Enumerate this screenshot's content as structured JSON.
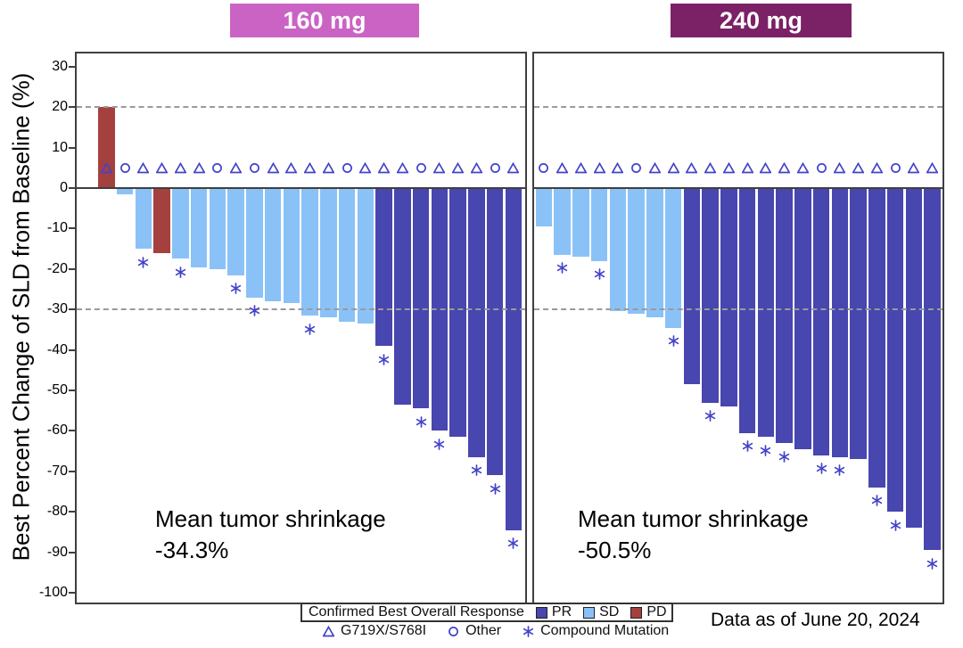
{
  "y_axis": {
    "title": "Best Percent Change of SLD from Baseline (%)",
    "ticks": [
      30,
      20,
      10,
      0,
      -10,
      -20,
      -30,
      -40,
      -50,
      -60,
      -70,
      -80,
      -90,
      -100
    ],
    "ref_lines": [
      20,
      -30
    ]
  },
  "legend": {
    "response_title": "Confirmed Best Overall Response",
    "response_items": [
      {
        "label": "PR",
        "color_key": "pr"
      },
      {
        "label": "SD",
        "color_key": "sd"
      },
      {
        "label": "PD",
        "color_key": "pd"
      }
    ],
    "mutation_items": [
      {
        "label": "G719X/S768I",
        "marker": "triangle"
      },
      {
        "label": "Other",
        "marker": "circle"
      },
      {
        "label": "Compound Mutation",
        "marker": "asterisk"
      }
    ]
  },
  "footer": {
    "note": "Data as of June 20, 2024"
  },
  "colors": {
    "pr": "#4846AF",
    "sd": "#8AC2F7",
    "pd": "#A4403E",
    "marker": "#4343C8",
    "dose_160": "#CA63C4",
    "dose_240": "#7B2166",
    "ref_line": "#9A9A9A",
    "axis": "#3F3F3F"
  },
  "chart_data": [
    {
      "type": "bar",
      "panel_label": "160 mg",
      "ylabel": "Best Percent Change of SLD from Baseline (%)",
      "ylim": [
        -100,
        30
      ],
      "ref_lines": [
        20,
        -30
      ],
      "marker_row_value": 5,
      "annotation": {
        "line1": "Mean tumor shrinkage",
        "line2": "-34.3%"
      },
      "patients": [
        {
          "value": 20,
          "response": "PD",
          "mutation": "G719X/S768I",
          "compound": false
        },
        {
          "value": -1.5,
          "response": "SD",
          "mutation": "Other",
          "compound": false
        },
        {
          "value": -15,
          "response": "SD",
          "mutation": "G719X/S768I",
          "compound": true
        },
        {
          "value": -16,
          "response": "PD",
          "mutation": "G719X/S768I",
          "compound": false
        },
        {
          "value": -17.5,
          "response": "SD",
          "mutation": "G719X/S768I",
          "compound": true
        },
        {
          "value": -19.5,
          "response": "SD",
          "mutation": "G719X/S768I",
          "compound": false
        },
        {
          "value": -20,
          "response": "SD",
          "mutation": "Other",
          "compound": false
        },
        {
          "value": -21.5,
          "response": "SD",
          "mutation": "G719X/S768I",
          "compound": true
        },
        {
          "value": -27,
          "response": "SD",
          "mutation": "Other",
          "compound": true
        },
        {
          "value": -28,
          "response": "SD",
          "mutation": "G719X/S768I",
          "compound": false
        },
        {
          "value": -28.5,
          "response": "SD",
          "mutation": "G719X/S768I",
          "compound": false
        },
        {
          "value": -31.5,
          "response": "SD",
          "mutation": "G719X/S768I",
          "compound": true
        },
        {
          "value": -32,
          "response": "SD",
          "mutation": "G719X/S768I",
          "compound": false
        },
        {
          "value": -33,
          "response": "SD",
          "mutation": "Other",
          "compound": false
        },
        {
          "value": -33.5,
          "response": "SD",
          "mutation": "G719X/S768I",
          "compound": false
        },
        {
          "value": -39,
          "response": "PR",
          "mutation": "G719X/S768I",
          "compound": true
        },
        {
          "value": -53.5,
          "response": "PR",
          "mutation": "G719X/S768I",
          "compound": false
        },
        {
          "value": -54.5,
          "response": "PR",
          "mutation": "Other",
          "compound": true
        },
        {
          "value": -60,
          "response": "PR",
          "mutation": "G719X/S768I",
          "compound": true
        },
        {
          "value": -61.5,
          "response": "PR",
          "mutation": "G719X/S768I",
          "compound": false
        },
        {
          "value": -66.5,
          "response": "PR",
          "mutation": "G719X/S768I",
          "compound": true
        },
        {
          "value": -71,
          "response": "PR",
          "mutation": "Other",
          "compound": true
        },
        {
          "value": -84.5,
          "response": "PR",
          "mutation": "G719X/S768I",
          "compound": true
        }
      ]
    },
    {
      "type": "bar",
      "panel_label": "240 mg",
      "ylabel": "Best Percent Change of SLD from Baseline (%)",
      "ylim": [
        -100,
        30
      ],
      "ref_lines": [
        20,
        -30
      ],
      "marker_row_value": 5,
      "annotation": {
        "line1": "Mean tumor shrinkage",
        "line2": "-50.5%"
      },
      "patients": [
        {
          "value": -9.5,
          "response": "SD",
          "mutation": "Other",
          "compound": false
        },
        {
          "value": -16.5,
          "response": "SD",
          "mutation": "G719X/S768I",
          "compound": true
        },
        {
          "value": -17,
          "response": "SD",
          "mutation": "G719X/S768I",
          "compound": false
        },
        {
          "value": -18,
          "response": "SD",
          "mutation": "G719X/S768I",
          "compound": true
        },
        {
          "value": -30.5,
          "response": "SD",
          "mutation": "G719X/S768I",
          "compound": false
        },
        {
          "value": -31,
          "response": "SD",
          "mutation": "Other",
          "compound": false
        },
        {
          "value": -32,
          "response": "SD",
          "mutation": "G719X/S768I",
          "compound": false
        },
        {
          "value": -34.5,
          "response": "SD",
          "mutation": "G719X/S768I",
          "compound": true
        },
        {
          "value": -48.5,
          "response": "PR",
          "mutation": "G719X/S768I",
          "compound": false
        },
        {
          "value": -53,
          "response": "PR",
          "mutation": "G719X/S768I",
          "compound": true
        },
        {
          "value": -54,
          "response": "PR",
          "mutation": "G719X/S768I",
          "compound": false
        },
        {
          "value": -60.5,
          "response": "PR",
          "mutation": "G719X/S768I",
          "compound": true
        },
        {
          "value": -61.5,
          "response": "PR",
          "mutation": "G719X/S768I",
          "compound": true
        },
        {
          "value": -63,
          "response": "PR",
          "mutation": "G719X/S768I",
          "compound": true
        },
        {
          "value": -64.5,
          "response": "PR",
          "mutation": "G719X/S768I",
          "compound": false
        },
        {
          "value": -66,
          "response": "PR",
          "mutation": "Other",
          "compound": true
        },
        {
          "value": -66.5,
          "response": "PR",
          "mutation": "G719X/S768I",
          "compound": true
        },
        {
          "value": -67,
          "response": "PR",
          "mutation": "G719X/S768I",
          "compound": false
        },
        {
          "value": -74,
          "response": "PR",
          "mutation": "G719X/S768I",
          "compound": true
        },
        {
          "value": -80,
          "response": "PR",
          "mutation": "Other",
          "compound": true
        },
        {
          "value": -84,
          "response": "PR",
          "mutation": "G719X/S768I",
          "compound": false
        },
        {
          "value": -89.5,
          "response": "PR",
          "mutation": "G719X/S768I",
          "compound": true
        }
      ]
    }
  ]
}
